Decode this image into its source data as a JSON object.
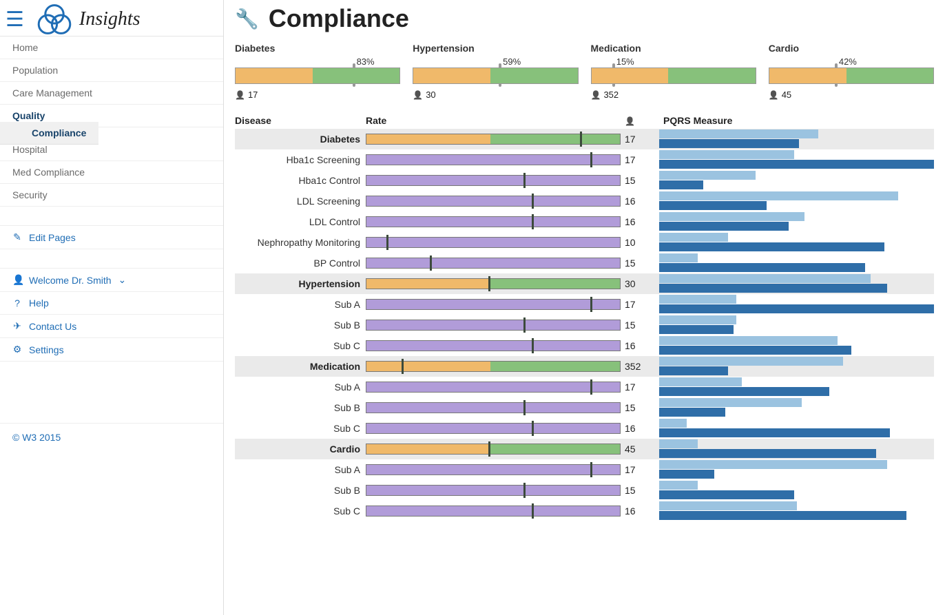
{
  "brand": {
    "name": "Insights"
  },
  "sidebar": {
    "items": [
      {
        "label": "Home"
      },
      {
        "label": "Population"
      },
      {
        "label": "Care Management"
      },
      {
        "label": "Quality",
        "active": true
      },
      {
        "label": "Hospital"
      },
      {
        "label": "Med Compliance"
      },
      {
        "label": "Security"
      }
    ],
    "sub": {
      "label": "Compliance"
    },
    "edit": {
      "label": "Edit Pages"
    },
    "links": [
      {
        "icon": "user",
        "label": "Welcome Dr. Smith",
        "chevron": true
      },
      {
        "icon": "question",
        "label": "Help"
      },
      {
        "icon": "paper-plane",
        "label": "Contact Us"
      },
      {
        "icon": "gear",
        "label": "Settings"
      }
    ],
    "footer": "© W3 2015"
  },
  "page": {
    "title": "Compliance"
  },
  "colors": {
    "orange": "#f0b96a",
    "green": "#87c17b",
    "purple": "#b19cd9",
    "marker_gray": "#999",
    "marker_dark": "#3c4a3c",
    "pqrs_light": "#9bc3e0",
    "pqrs_dark": "#2f6ea8",
    "header_bg": "#eaeaea"
  },
  "summary": [
    {
      "title": "Diabetes",
      "pct": 83,
      "orange": 47,
      "marker": 71,
      "count": 17
    },
    {
      "title": "Hypertension",
      "pct": 59,
      "orange": 47,
      "marker": 52,
      "count": 30
    },
    {
      "title": "Medication",
      "pct": 15,
      "orange": 47,
      "marker": 13,
      "count": 352
    },
    {
      "title": "Cardio",
      "pct": 42,
      "orange": 47,
      "marker": 40,
      "count": 45
    }
  ],
  "tableHeaders": {
    "disease": "Disease",
    "rate": "Rate",
    "count_icon": "person",
    "pqrs": "PQRS Measure"
  },
  "rows": [
    {
      "kind": "header",
      "label": "Diabetes",
      "split": 49,
      "marker": 84,
      "count": 17,
      "pqrs_light": 58,
      "pqrs_dark": 51
    },
    {
      "kind": "sub",
      "label": "Hba1c Screening",
      "marker": 88,
      "count": 17,
      "pqrs_light": 49,
      "pqrs_dark": 100
    },
    {
      "kind": "sub",
      "label": "Hba1c Control",
      "marker": 62,
      "count": 15,
      "pqrs_light": 35,
      "pqrs_dark": 16
    },
    {
      "kind": "sub",
      "label": "LDL Screening",
      "marker": 65,
      "count": 16,
      "pqrs_light": 87,
      "pqrs_dark": 39
    },
    {
      "kind": "sub",
      "label": "LDL Control",
      "marker": 65,
      "count": 16,
      "pqrs_light": 53,
      "pqrs_dark": 47
    },
    {
      "kind": "sub",
      "label": "Nephropathy Monitoring",
      "marker": 8,
      "count": 10,
      "pqrs_light": 25,
      "pqrs_dark": 82
    },
    {
      "kind": "sub",
      "label": "BP Control",
      "marker": 25,
      "count": 15,
      "pqrs_light": 14,
      "pqrs_dark": 75
    },
    {
      "kind": "header",
      "label": "Hypertension",
      "split": 49,
      "marker": 48,
      "count": 30,
      "pqrs_light": 77,
      "pqrs_dark": 83
    },
    {
      "kind": "sub",
      "label": "Sub A",
      "marker": 88,
      "count": 17,
      "pqrs_light": 28,
      "pqrs_dark": 100
    },
    {
      "kind": "sub",
      "label": "Sub B",
      "marker": 62,
      "count": 15,
      "pqrs_light": 28,
      "pqrs_dark": 27
    },
    {
      "kind": "sub",
      "label": "Sub C",
      "marker": 65,
      "count": 16,
      "pqrs_light": 65,
      "pqrs_dark": 70
    },
    {
      "kind": "header",
      "label": "Medication",
      "split": 49,
      "marker": 14,
      "count": 352,
      "pqrs_light": 67,
      "pqrs_dark": 25
    },
    {
      "kind": "sub",
      "label": "Sub A",
      "marker": 88,
      "count": 17,
      "pqrs_light": 30,
      "pqrs_dark": 62
    },
    {
      "kind": "sub",
      "label": "Sub B",
      "marker": 62,
      "count": 15,
      "pqrs_light": 52,
      "pqrs_dark": 24
    },
    {
      "kind": "sub",
      "label": "Sub C",
      "marker": 65,
      "count": 16,
      "pqrs_light": 10,
      "pqrs_dark": 84
    },
    {
      "kind": "header",
      "label": "Cardio",
      "split": 49,
      "marker": 48,
      "count": 45,
      "pqrs_light": 14,
      "pqrs_dark": 79
    },
    {
      "kind": "sub",
      "label": "Sub A",
      "marker": 88,
      "count": 17,
      "pqrs_light": 83,
      "pqrs_dark": 20
    },
    {
      "kind": "sub",
      "label": "Sub B",
      "marker": 62,
      "count": 15,
      "pqrs_light": 14,
      "pqrs_dark": 49
    },
    {
      "kind": "sub",
      "label": "Sub C",
      "marker": 65,
      "count": 16,
      "pqrs_light": 50,
      "pqrs_dark": 90
    }
  ]
}
